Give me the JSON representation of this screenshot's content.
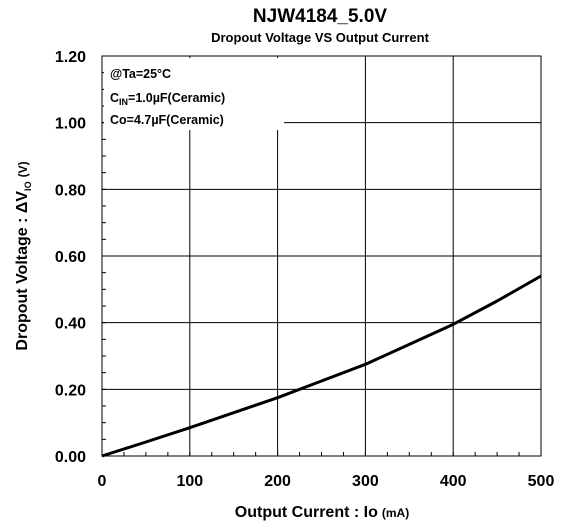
{
  "chart_data": {
    "type": "line",
    "title": "NJW4184_5.0V",
    "subtitle": "Dropout Voltage VS Output Current",
    "xlabel": "Output Current : Io",
    "xlabel_unit": "(mA)",
    "ylabel_main": "Dropout Voltage : ΔV",
    "ylabel_sub": "IO",
    "ylabel_unit": "(V)",
    "xlim": [
      0,
      500
    ],
    "ylim": [
      0,
      1.2
    ],
    "x_ticks": [
      0,
      100,
      200,
      300,
      400,
      500
    ],
    "x_tick_labels": [
      "0",
      "100",
      "200",
      "300",
      "400",
      "500"
    ],
    "y_ticks": [
      0,
      0.2,
      0.4,
      0.6,
      0.8,
      1.0,
      1.2
    ],
    "y_tick_labels": [
      "0.00",
      "0.20",
      "0.40",
      "0.60",
      "0.80",
      "1.00",
      "1.20"
    ],
    "grid": true,
    "annotations": {
      "line1": "@Ta=25°C",
      "line2_main": "C",
      "line2_sub": "IN",
      "line2_rest": "=1.0µF(Ceramic)",
      "line3": "Co=4.7µF(Ceramic)"
    },
    "series": [
      {
        "color": "#000000",
        "x": [
          0,
          50,
          100,
          150,
          200,
          250,
          300,
          350,
          400,
          450,
          500
        ],
        "y": [
          0.0,
          0.042,
          0.085,
          0.13,
          0.175,
          0.225,
          0.275,
          0.335,
          0.395,
          0.465,
          0.54
        ]
      }
    ]
  }
}
